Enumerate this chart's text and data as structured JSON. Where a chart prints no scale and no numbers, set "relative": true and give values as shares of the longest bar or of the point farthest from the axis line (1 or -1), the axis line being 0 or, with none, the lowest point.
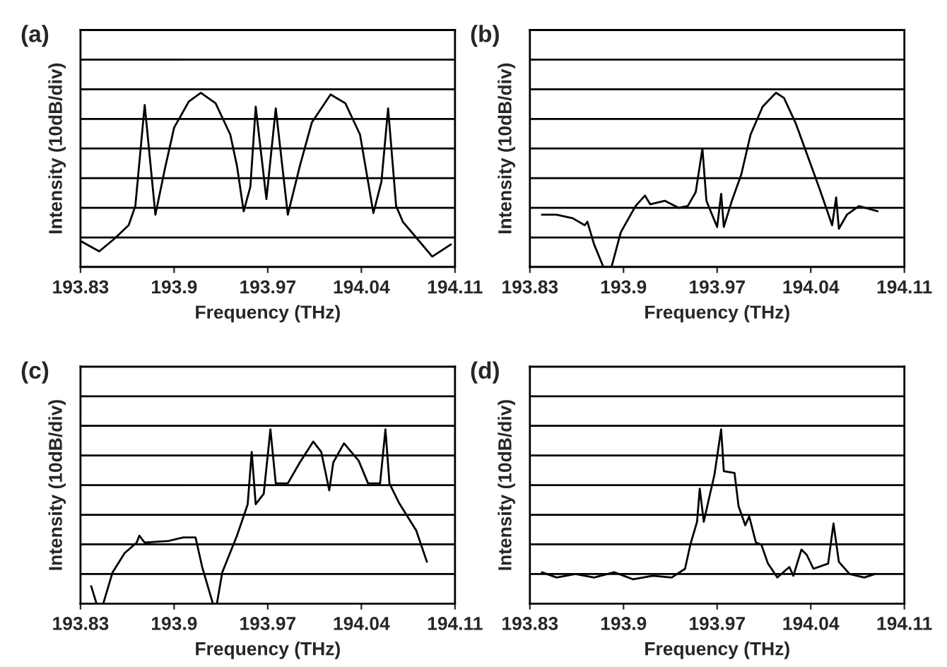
{
  "chart_data": [
    {
      "type": "line",
      "title": "(a)",
      "xlabel": "Frequency (THz)",
      "ylabel": "Intensity (10dB/div)",
      "relative": true,
      "grid": "y",
      "xlim": [
        193.83,
        194.11
      ],
      "xticks": [
        193.83,
        193.9,
        193.97,
        194.04,
        194.11
      ],
      "series": [
        {
          "color": "#000000",
          "x": [
            193.83,
            193.844,
            193.855,
            193.866,
            193.871,
            193.878,
            193.886,
            193.893,
            193.9,
            193.911,
            193.92,
            193.931,
            193.942,
            193.947,
            193.952,
            193.957,
            193.961,
            193.969,
            193.976,
            193.985,
            193.994,
            194.003,
            194.017,
            194.028,
            194.039,
            194.049,
            194.055,
            194.06,
            194.066,
            194.071,
            194.082,
            194.093,
            194.107
          ],
          "values": [
            0.15,
            0.09,
            0.16,
            0.24,
            0.35,
            0.93,
            0.3,
            0.56,
            0.8,
            0.95,
            1,
            0.94,
            0.76,
            0.58,
            0.32,
            0.46,
            0.92,
            0.39,
            0.91,
            0.3,
            0.58,
            0.83,
            0.99,
            0.94,
            0.76,
            0.31,
            0.49,
            0.91,
            0.35,
            0.26,
            0.16,
            0.06,
            0.13
          ]
        }
      ]
    },
    {
      "type": "line",
      "title": "(b)",
      "xlabel": "Frequency (THz)",
      "ylabel": "Intensity (10dB/div)",
      "relative": true,
      "grid": "y",
      "xlim": [
        193.83,
        194.11
      ],
      "xticks": [
        193.83,
        193.9,
        193.97,
        194.04,
        194.11
      ],
      "series": [
        {
          "color": "#000000",
          "x": [
            193.839,
            193.85,
            193.862,
            193.871,
            193.873,
            193.878,
            193.885,
            193.891,
            193.898,
            193.909,
            193.916,
            193.92,
            193.931,
            193.941,
            193.948,
            193.954,
            193.959,
            193.962,
            193.97,
            193.973,
            193.975,
            193.981,
            193.988,
            193.995,
            194.004,
            194.014,
            194.02,
            194.029,
            194.038,
            194.047,
            194.056,
            194.059,
            194.061,
            194.067,
            194.076,
            194.09
          ],
          "values": [
            0.3,
            0.3,
            0.28,
            0.24,
            0.26,
            0.13,
            0,
            0,
            0.2,
            0.35,
            0.41,
            0.36,
            0.38,
            0.34,
            0.35,
            0.43,
            0.68,
            0.38,
            0.23,
            0.42,
            0.23,
            0.38,
            0.53,
            0.76,
            0.92,
            1,
            0.97,
            0.82,
            0.63,
            0.44,
            0.24,
            0.4,
            0.22,
            0.3,
            0.35,
            0.32
          ]
        }
      ]
    },
    {
      "type": "line",
      "title": "(c)",
      "xlabel": "Frequency (THz)",
      "ylabel": "Intensity (10dB/div)",
      "relative": true,
      "grid": "y",
      "xlim": [
        193.83,
        194.11
      ],
      "xticks": [
        193.83,
        193.9,
        193.97,
        194.04,
        194.11
      ],
      "series": [
        {
          "color": "#000000",
          "x": [
            193.838,
            193.842,
            193.847,
            193.854,
            193.863,
            193.872,
            193.874,
            193.878,
            193.896,
            193.907,
            193.916,
            193.921,
            193.929,
            193.932,
            193.936,
            193.947,
            193.955,
            193.958,
            193.961,
            193.967,
            193.972,
            193.976,
            193.985,
            193.994,
            194.004,
            194.01,
            194.016,
            194.019,
            194.027,
            194.038,
            194.045,
            194.054,
            194.058,
            194.061,
            194.068,
            194.081,
            194.089
          ],
          "values": [
            0.1,
            0,
            0,
            0.18,
            0.29,
            0.35,
            0.39,
            0.35,
            0.36,
            0.38,
            0.38,
            0.21,
            0,
            0,
            0.18,
            0.39,
            0.57,
            0.87,
            0.57,
            0.63,
            1,
            0.69,
            0.69,
            0.81,
            0.93,
            0.87,
            0.65,
            0.81,
            0.92,
            0.82,
            0.69,
            0.69,
            1,
            0.69,
            0.58,
            0.42,
            0.24
          ]
        }
      ]
    },
    {
      "type": "line",
      "title": "(d)",
      "xlabel": "Frequency (THz)",
      "ylabel": "Intensity (10dB/div)",
      "relative": true,
      "grid": "y",
      "xlim": [
        193.83,
        194.11
      ],
      "xticks": [
        193.83,
        193.9,
        193.97,
        194.04,
        194.11
      ],
      "series": [
        {
          "color": "#000000",
          "x": [
            193.839,
            193.85,
            193.864,
            193.878,
            193.893,
            193.907,
            193.922,
            193.936,
            193.946,
            193.95,
            193.955,
            193.957,
            193.96,
            193.965,
            193.968,
            193.973,
            193.975,
            193.983,
            193.986,
            193.991,
            193.994,
            193.999,
            194.003,
            194.008,
            194.015,
            194.024,
            194.027,
            194.033,
            194.037,
            194.042,
            194.053,
            194.057,
            194.061,
            194.069,
            194.08,
            194.088
          ],
          "values": [
            0.18,
            0.15,
            0.17,
            0.15,
            0.18,
            0.14,
            0.16,
            0.15,
            0.2,
            0.34,
            0.47,
            0.66,
            0.47,
            0.64,
            0.74,
            1,
            0.76,
            0.75,
            0.56,
            0.45,
            0.5,
            0.35,
            0.34,
            0.23,
            0.15,
            0.21,
            0.16,
            0.31,
            0.28,
            0.2,
            0.23,
            0.46,
            0.24,
            0.17,
            0.15,
            0.17
          ]
        }
      ]
    }
  ]
}
